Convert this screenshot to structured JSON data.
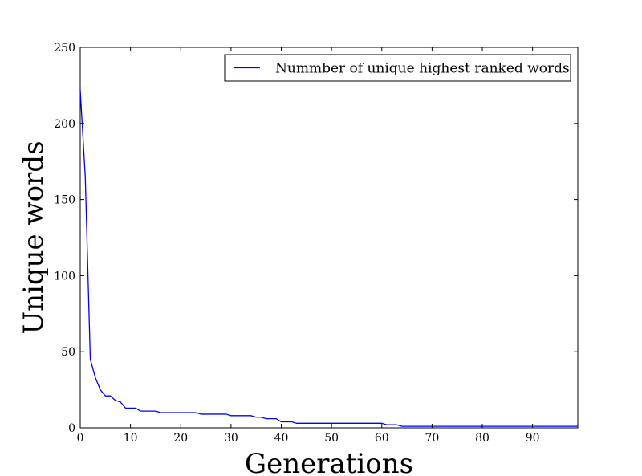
{
  "chart_data": {
    "type": "line",
    "title": "",
    "xlabel": "Generations",
    "ylabel": "Unique words",
    "xlim": [
      0,
      99
    ],
    "ylim": [
      0,
      250
    ],
    "xticks": [
      0,
      10,
      20,
      30,
      40,
      50,
      60,
      70,
      80,
      90
    ],
    "yticks": [
      0,
      50,
      100,
      150,
      200,
      250
    ],
    "grid": false,
    "legend_position": "top-right",
    "series": [
      {
        "name": "Nummber of unique highest ranked words",
        "color": "#0000ff",
        "x": [
          0,
          1,
          2,
          3,
          4,
          5,
          6,
          7,
          8,
          9,
          10,
          11,
          12,
          13,
          14,
          15,
          16,
          17,
          18,
          19,
          20,
          21,
          22,
          23,
          24,
          25,
          26,
          27,
          28,
          29,
          30,
          31,
          32,
          33,
          34,
          35,
          36,
          37,
          38,
          39,
          40,
          41,
          42,
          43,
          44,
          45,
          46,
          47,
          48,
          49,
          50,
          51,
          52,
          53,
          54,
          55,
          56,
          57,
          58,
          59,
          60,
          61,
          62,
          63,
          64,
          65,
          66,
          67,
          68,
          69,
          70,
          71,
          72,
          73,
          74,
          75,
          76,
          77,
          78,
          79,
          80,
          81,
          82,
          83,
          84,
          85,
          86,
          87,
          88,
          89,
          90,
          91,
          92,
          93,
          94,
          95,
          96,
          97,
          98,
          99
        ],
        "y": [
          222,
          165,
          45,
          33,
          25,
          21,
          21,
          18,
          17,
          13,
          13,
          13,
          11,
          11,
          11,
          11,
          10,
          10,
          10,
          10,
          10,
          10,
          10,
          10,
          9,
          9,
          9,
          9,
          9,
          9,
          8,
          8,
          8,
          8,
          8,
          7,
          7,
          6,
          6,
          6,
          4,
          4,
          4,
          3,
          3,
          3,
          3,
          3,
          3,
          3,
          3,
          3,
          3,
          3,
          3,
          3,
          3,
          3,
          3,
          3,
          3,
          2,
          2,
          2,
          1,
          1,
          1,
          1,
          1,
          1,
          1,
          1,
          1,
          1,
          1,
          1,
          1,
          1,
          1,
          1,
          1,
          1,
          1,
          1,
          1,
          1,
          1,
          1,
          1,
          1,
          1,
          1,
          1,
          1,
          1,
          1,
          1,
          1,
          1,
          1
        ]
      }
    ]
  }
}
